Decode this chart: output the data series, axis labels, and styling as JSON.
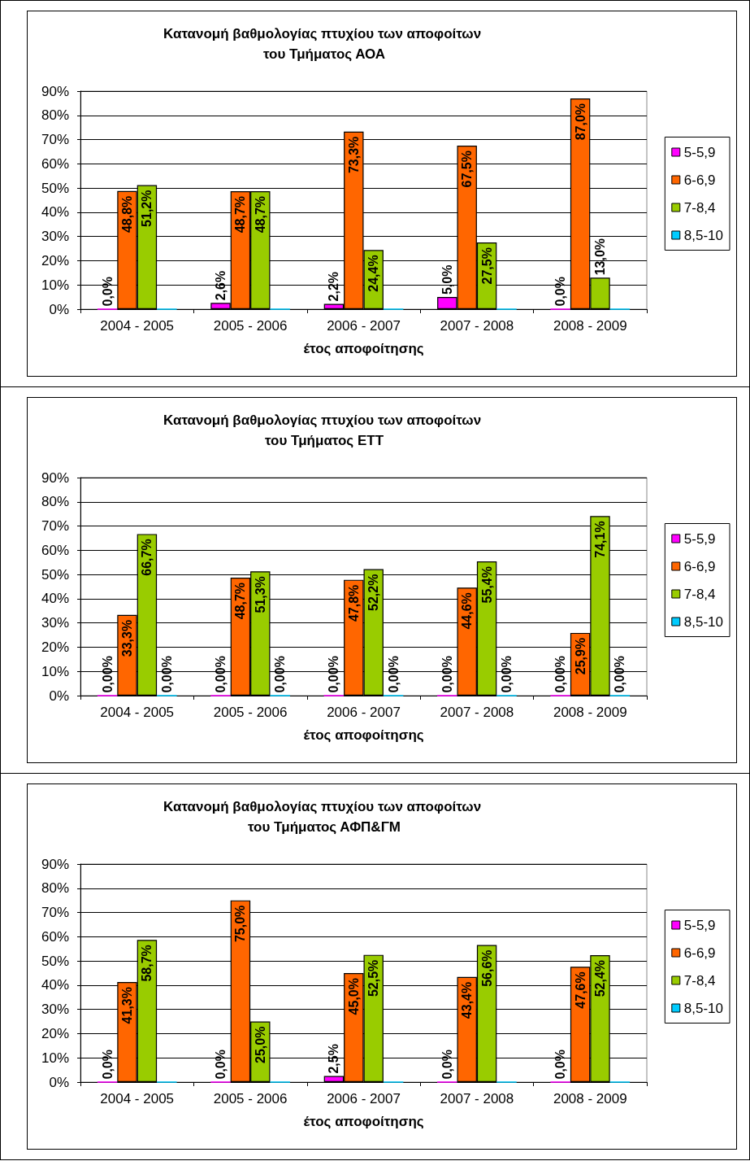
{
  "chart_data": [
    {
      "type": "bar",
      "title": "Κατανομή βαθμολογίας πτυχίου των αποφοίτων του Τμήματος ΑΟΑ",
      "xlabel": "έτος αποφοίτησης",
      "categories": [
        "2004 - 2005",
        "2005 - 2006",
        "2006 - 2007",
        "2007 - 2008",
        "2008 - 2009"
      ],
      "ylim": [
        0,
        90
      ],
      "yticks": [
        {
          "value": 0,
          "label": "0%"
        },
        {
          "value": 10,
          "label": "10%"
        },
        {
          "value": 20,
          "label": "20%"
        },
        {
          "value": 30,
          "label": "30%"
        },
        {
          "value": 40,
          "label": "40%"
        },
        {
          "value": 50,
          "label": "50%"
        },
        {
          "value": 60,
          "label": "60%"
        },
        {
          "value": 70,
          "label": "70%"
        },
        {
          "value": 80,
          "label": "80%"
        },
        {
          "value": 90,
          "label": "90%"
        }
      ],
      "grid": "y",
      "legend": "right",
      "series": [
        {
          "name": "5-5,9",
          "color": "#ff00ff",
          "values": [
            0.0,
            2.6,
            2.2,
            5.0,
            0.0
          ],
          "value_labels": [
            "0,0%",
            "2,6%",
            "2,2%",
            "5,0%",
            "0,0%"
          ]
        },
        {
          "name": "6-6,9",
          "color": "#ff6600",
          "values": [
            48.8,
            48.7,
            73.3,
            67.5,
            87.0
          ],
          "value_labels": [
            "48,8%",
            "48,7%",
            "73,3%",
            "67,5%",
            "87,0%"
          ]
        },
        {
          "name": "7-8,4",
          "color": "#99cc00",
          "values": [
            51.2,
            48.7,
            24.4,
            27.5,
            13.0
          ],
          "value_labels": [
            "51,2%",
            "48,7%",
            "24,4%",
            "27,5%",
            "13,0%"
          ]
        },
        {
          "name": "8,5-10",
          "color": "#00ccff",
          "values": [
            0,
            0,
            0,
            0,
            0
          ],
          "value_labels": [
            null,
            null,
            null,
            null,
            null
          ]
        }
      ]
    },
    {
      "type": "bar",
      "title": "Κατανομή βαθμολογίας πτυχίου των αποφοίτων του Τμήματος ΕΤΤ",
      "xlabel": "έτος αποφοίτησης",
      "categories": [
        "2004 - 2005",
        "2005 - 2006",
        "2006 - 2007",
        "2007 - 2008",
        "2008 - 2009"
      ],
      "ylim": [
        0,
        90
      ],
      "yticks": [
        {
          "value": 0,
          "label": "0%"
        },
        {
          "value": 10,
          "label": "10%"
        },
        {
          "value": 20,
          "label": "20%"
        },
        {
          "value": 30,
          "label": "30%"
        },
        {
          "value": 40,
          "label": "40%"
        },
        {
          "value": 50,
          "label": "50%"
        },
        {
          "value": 60,
          "label": "60%"
        },
        {
          "value": 70,
          "label": "70%"
        },
        {
          "value": 80,
          "label": "80%"
        },
        {
          "value": 90,
          "label": "90%"
        }
      ],
      "grid": "y",
      "legend": "right",
      "series": [
        {
          "name": "5-5,9",
          "color": "#ff00ff",
          "values": [
            0,
            0,
            0,
            0,
            0
          ],
          "value_labels": [
            "0,00%",
            "0,00%",
            "0,00%",
            "0,00%",
            "0,00%"
          ]
        },
        {
          "name": "6-6,9",
          "color": "#ff6600",
          "values": [
            33.3,
            48.7,
            47.8,
            44.6,
            25.9
          ],
          "value_labels": [
            "33,3%",
            "48,7%",
            "47,8%",
            "44,6%",
            "25,9%"
          ]
        },
        {
          "name": "7-8,4",
          "color": "#99cc00",
          "values": [
            66.7,
            51.3,
            52.2,
            55.4,
            74.1
          ],
          "value_labels": [
            "66,7%",
            "51,3%",
            "52,2%",
            "55,4%",
            "74,1%"
          ]
        },
        {
          "name": "8,5-10",
          "color": "#00ccff",
          "values": [
            0,
            0,
            0,
            0,
            0
          ],
          "value_labels": [
            "0,00%",
            "0,00%",
            "0,00%",
            "0,00%",
            "0,00%"
          ]
        }
      ]
    },
    {
      "type": "bar",
      "title": "Κατανομή βαθμολογίας πτυχίου των αποφοίτων του Τμήματος ΑΦΠ&ΓΜ",
      "xlabel": "έτος αποφοίτησης",
      "categories": [
        "2004 - 2005",
        "2005 - 2006",
        "2006 - 2007",
        "2007 - 2008",
        "2008 - 2009"
      ],
      "ylim": [
        0,
        90
      ],
      "yticks": [
        {
          "value": 0,
          "label": "0%"
        },
        {
          "value": 10,
          "label": "10%"
        },
        {
          "value": 20,
          "label": "20%"
        },
        {
          "value": 30,
          "label": "30%"
        },
        {
          "value": 40,
          "label": "40%"
        },
        {
          "value": 50,
          "label": "50%"
        },
        {
          "value": 60,
          "label": "60%"
        },
        {
          "value": 70,
          "label": "70%"
        },
        {
          "value": 80,
          "label": "80%"
        },
        {
          "value": 90,
          "label": "90%"
        }
      ],
      "grid": "y",
      "legend": "right",
      "series": [
        {
          "name": "5-5,9",
          "color": "#ff00ff",
          "values": [
            0.0,
            0.0,
            2.5,
            0.0,
            0.0
          ],
          "value_labels": [
            "0,0%",
            "0,0%",
            "2,5%",
            "0,0%",
            "0,0%"
          ]
        },
        {
          "name": "6-6,9",
          "color": "#ff6600",
          "values": [
            41.3,
            75.0,
            45.0,
            43.4,
            47.6
          ],
          "value_labels": [
            "41,3%",
            "75,0%",
            "45,0%",
            "43,4%",
            "47,6%"
          ]
        },
        {
          "name": "7-8,4",
          "color": "#99cc00",
          "values": [
            58.7,
            25.0,
            52.5,
            56.6,
            52.4
          ],
          "value_labels": [
            "58,7%",
            "25,0%",
            "52,5%",
            "56,6%",
            "52,4%"
          ]
        },
        {
          "name": "8,5-10",
          "color": "#00ccff",
          "values": [
            0,
            0,
            0,
            0,
            0
          ],
          "value_labels": [
            null,
            null,
            null,
            null,
            null
          ]
        }
      ]
    }
  ]
}
